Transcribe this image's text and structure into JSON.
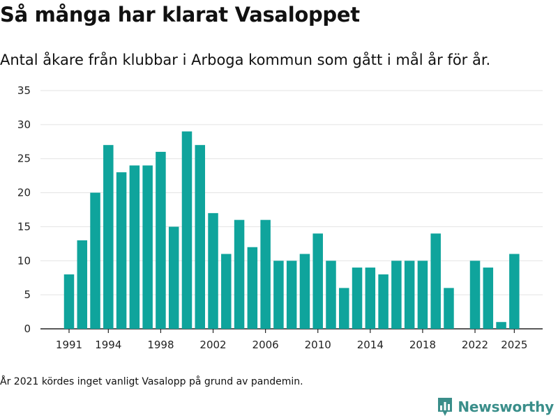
{
  "header": {
    "title": "Så många har klarat Vasaloppet",
    "subtitle": "Antal åkare från klubbar i Arboga kommun som gått i mål år för år."
  },
  "footnote": "År 2021 kördes inget vanligt Vasalopp på grund av pandemin.",
  "brand": {
    "name": "Newsworthy",
    "icon": "newsworthy-logo-icon",
    "color": "#3a8e8a"
  },
  "colors": {
    "bar": "#0fa49c",
    "grid": "#e3e3e3",
    "axis": "#222222"
  },
  "chart_data": {
    "type": "bar",
    "title": "Så många har klarat Vasaloppet",
    "subtitle": "Antal åkare från klubbar i Arboga kommun som gått i mål år för år.",
    "x": [
      1991,
      1992,
      1993,
      1994,
      1995,
      1996,
      1997,
      1998,
      1999,
      2000,
      2001,
      2002,
      2003,
      2004,
      2005,
      2006,
      2007,
      2008,
      2009,
      2010,
      2011,
      2012,
      2013,
      2014,
      2015,
      2016,
      2017,
      2018,
      2019,
      2020,
      2021,
      2022,
      2023,
      2024,
      2025
    ],
    "values": [
      8,
      13,
      20,
      27,
      23,
      24,
      24,
      26,
      15,
      29,
      27,
      17,
      11,
      16,
      12,
      16,
      10,
      10,
      11,
      14,
      10,
      6,
      9,
      9,
      8,
      10,
      10,
      10,
      14,
      6,
      null,
      10,
      9,
      1,
      11
    ],
    "x_tick_labels": [
      "1991",
      "1994",
      "1998",
      "2002",
      "2006",
      "2010",
      "2014",
      "2018",
      "2022",
      "2025"
    ],
    "y_ticks": [
      0,
      5,
      10,
      15,
      20,
      25,
      30,
      35
    ],
    "ylim": [
      0,
      35
    ],
    "xlabel": "",
    "ylabel": "",
    "grid": true,
    "legend": "none"
  }
}
